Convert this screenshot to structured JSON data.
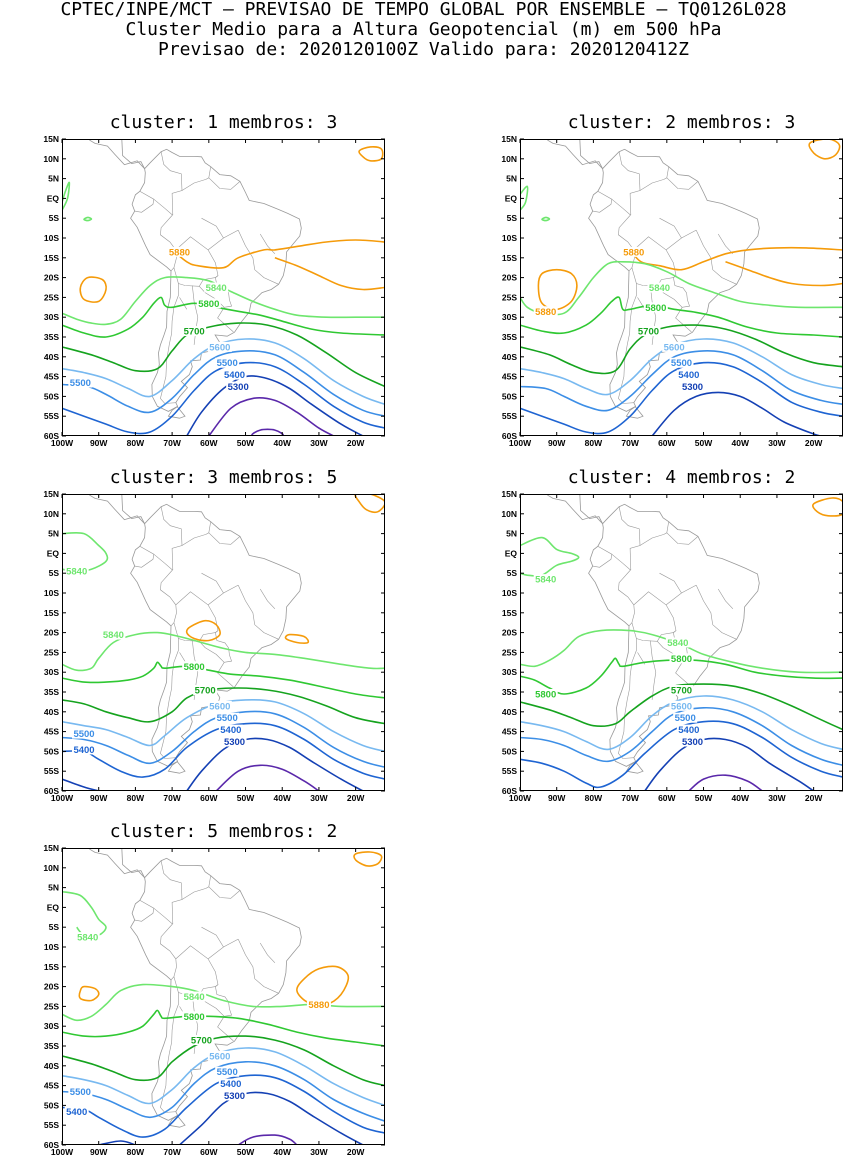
{
  "header": {
    "line1": "CPTEC/INPE/MCT — PREVISAO DE TEMPO GLOBAL POR ENSEMBLE — TQ0126L028",
    "line2": "Cluster Medio para a Altura Geopotencial (m) em 500 hPa",
    "line3": "Previsao de: 2020120100Z    Valido para: 2020120412Z"
  },
  "lat_labels": [
    "15N",
    "10N",
    "5N",
    "EQ",
    "5S",
    "10S",
    "15S",
    "20S",
    "25S",
    "30S",
    "35S",
    "40S",
    "45S",
    "50S",
    "55S",
    "60S"
  ],
  "lon_labels": [
    "100W",
    "90W",
    "80W",
    "70W",
    "60W",
    "50W",
    "40W",
    "30W",
    "20W"
  ],
  "extent": {
    "lon_min": -100,
    "lon_max": -12,
    "lat_min": -60,
    "lat_max": 15
  },
  "colors": {
    "5880": "#f59b0a",
    "5840": "#6ee66e",
    "5800": "#2fc832",
    "5700": "#15a31e",
    "5600": "#78b9f0",
    "5500": "#3c8ee6",
    "5400": "#1e64d2",
    "5300": "#1440b4",
    "5200": "#5a28aa",
    "coast": "#999999"
  },
  "panels": [
    {
      "title": "cluster: 1   membros: 3",
      "labels": [
        {
          "text": "5880",
          "lon": -68,
          "lat": -13.5
        },
        {
          "text": "5840",
          "lon": -58,
          "lat": -22.5
        },
        {
          "text": "5800",
          "lon": -60,
          "lat": -26.5
        },
        {
          "text": "5700",
          "lon": -64,
          "lat": -33.5
        },
        {
          "text": "5600",
          "lon": -57,
          "lat": -37.5
        },
        {
          "text": "5500",
          "lon": -55,
          "lat": -41.5
        },
        {
          "text": "5400",
          "lon": -53,
          "lat": -44.5
        },
        {
          "text": "5300",
          "lon": -52,
          "lat": -47.5
        },
        {
          "text": "5500",
          "lon": -95,
          "lat": -46.5
        }
      ]
    },
    {
      "title": "cluster: 2   membros: 3",
      "labels": [
        {
          "text": "5880",
          "lon": -69,
          "lat": -13.5
        },
        {
          "text": "5880",
          "lon": -93,
          "lat": -28.5
        },
        {
          "text": "5840",
          "lon": -62,
          "lat": -22.5
        },
        {
          "text": "5800",
          "lon": -63,
          "lat": -27.5
        },
        {
          "text": "5700",
          "lon": -65,
          "lat": -33.5
        },
        {
          "text": "5600",
          "lon": -58,
          "lat": -37.5
        },
        {
          "text": "5500",
          "lon": -56,
          "lat": -41.5
        },
        {
          "text": "5400",
          "lon": -54,
          "lat": -44.5
        },
        {
          "text": "5300",
          "lon": -53,
          "lat": -47.5
        }
      ]
    },
    {
      "title": "cluster: 3   membros: 5",
      "labels": [
        {
          "text": "5840",
          "lon": -96,
          "lat": -4.5
        },
        {
          "text": "5840",
          "lon": -86,
          "lat": -20.5
        },
        {
          "text": "5800",
          "lon": -64,
          "lat": -28.5
        },
        {
          "text": "5700",
          "lon": -61,
          "lat": -34.5
        },
        {
          "text": "5600",
          "lon": -57,
          "lat": -38.5
        },
        {
          "text": "5500",
          "lon": -55,
          "lat": -41.5
        },
        {
          "text": "5400",
          "lon": -54,
          "lat": -44.5
        },
        {
          "text": "5300",
          "lon": -53,
          "lat": -47.5
        },
        {
          "text": "5500",
          "lon": -94,
          "lat": -45.5
        },
        {
          "text": "5400",
          "lon": -94,
          "lat": -49.5
        }
      ]
    },
    {
      "title": "cluster: 4   membros: 2",
      "labels": [
        {
          "text": "5840",
          "lon": -93,
          "lat": -6.5
        },
        {
          "text": "5840",
          "lon": -57,
          "lat": -22.5
        },
        {
          "text": "5800",
          "lon": -56,
          "lat": -26.5
        },
        {
          "text": "5800",
          "lon": -93,
          "lat": -35.5
        },
        {
          "text": "5700",
          "lon": -56,
          "lat": -34.5
        },
        {
          "text": "5600",
          "lon": -56,
          "lat": -38.5
        },
        {
          "text": "5500",
          "lon": -55,
          "lat": -41.5
        },
        {
          "text": "5400",
          "lon": -54,
          "lat": -44.5
        },
        {
          "text": "5300",
          "lon": -53,
          "lat": -47.5
        }
      ]
    },
    {
      "title": "cluster: 5   membros: 2",
      "labels": [
        {
          "text": "5840",
          "lon": -93,
          "lat": -7.5
        },
        {
          "text": "5880",
          "lon": -30,
          "lat": -24.5
        },
        {
          "text": "5840",
          "lon": -64,
          "lat": -22.5
        },
        {
          "text": "5800",
          "lon": -64,
          "lat": -27.5
        },
        {
          "text": "5700",
          "lon": -62,
          "lat": -33.5
        },
        {
          "text": "5600",
          "lon": -57,
          "lat": -37.5
        },
        {
          "text": "5500",
          "lon": -55,
          "lat": -41.5
        },
        {
          "text": "5400",
          "lon": -54,
          "lat": -44.5
        },
        {
          "text": "5300",
          "lon": -53,
          "lat": -47.5
        },
        {
          "text": "5500",
          "lon": -95,
          "lat": -46.5
        },
        {
          "text": "5400",
          "lon": -96,
          "lat": -51.5
        }
      ]
    }
  ]
}
